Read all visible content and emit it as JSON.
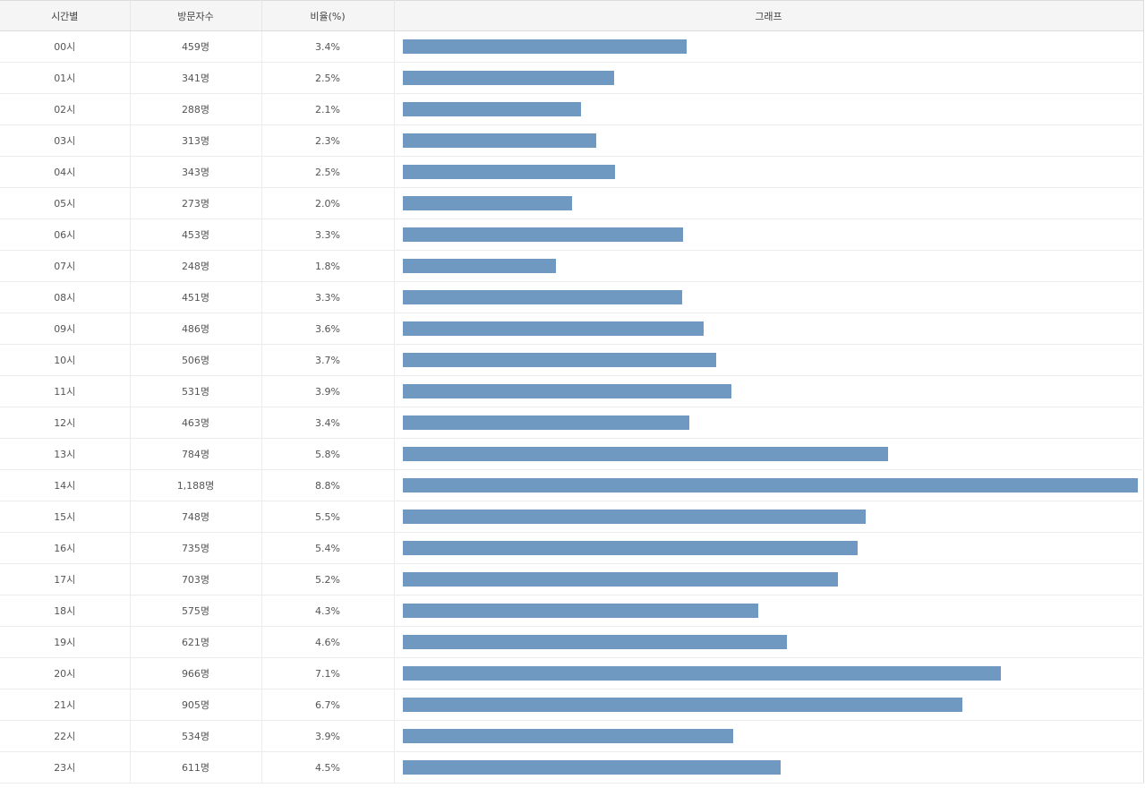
{
  "table": {
    "headers": [
      "시간별",
      "방문자수",
      "비율(%)",
      "그래프"
    ],
    "max_visitors": 1188,
    "bar_color": "#7099c1",
    "rows": [
      {
        "hour": "00시",
        "visitors": "459명",
        "ratio": "3.4%",
        "value": 459
      },
      {
        "hour": "01시",
        "visitors": "341명",
        "ratio": "2.5%",
        "value": 341
      },
      {
        "hour": "02시",
        "visitors": "288명",
        "ratio": "2.1%",
        "value": 288
      },
      {
        "hour": "03시",
        "visitors": "313명",
        "ratio": "2.3%",
        "value": 313
      },
      {
        "hour": "04시",
        "visitors": "343명",
        "ratio": "2.5%",
        "value": 343
      },
      {
        "hour": "05시",
        "visitors": "273명",
        "ratio": "2.0%",
        "value": 273
      },
      {
        "hour": "06시",
        "visitors": "453명",
        "ratio": "3.3%",
        "value": 453
      },
      {
        "hour": "07시",
        "visitors": "248명",
        "ratio": "1.8%",
        "value": 248
      },
      {
        "hour": "08시",
        "visitors": "451명",
        "ratio": "3.3%",
        "value": 451
      },
      {
        "hour": "09시",
        "visitors": "486명",
        "ratio": "3.6%",
        "value": 486
      },
      {
        "hour": "10시",
        "visitors": "506명",
        "ratio": "3.7%",
        "value": 506
      },
      {
        "hour": "11시",
        "visitors": "531명",
        "ratio": "3.9%",
        "value": 531
      },
      {
        "hour": "12시",
        "visitors": "463명",
        "ratio": "3.4%",
        "value": 463
      },
      {
        "hour": "13시",
        "visitors": "784명",
        "ratio": "5.8%",
        "value": 784
      },
      {
        "hour": "14시",
        "visitors": "1,188명",
        "ratio": "8.8%",
        "value": 1188
      },
      {
        "hour": "15시",
        "visitors": "748명",
        "ratio": "5.5%",
        "value": 748
      },
      {
        "hour": "16시",
        "visitors": "735명",
        "ratio": "5.4%",
        "value": 735
      },
      {
        "hour": "17시",
        "visitors": "703명",
        "ratio": "5.2%",
        "value": 703
      },
      {
        "hour": "18시",
        "visitors": "575명",
        "ratio": "4.3%",
        "value": 575
      },
      {
        "hour": "19시",
        "visitors": "621명",
        "ratio": "4.6%",
        "value": 621
      },
      {
        "hour": "20시",
        "visitors": "966명",
        "ratio": "7.1%",
        "value": 966
      },
      {
        "hour": "21시",
        "visitors": "905명",
        "ratio": "6.7%",
        "value": 905
      },
      {
        "hour": "22시",
        "visitors": "534명",
        "ratio": "3.9%",
        "value": 534
      },
      {
        "hour": "23시",
        "visitors": "611명",
        "ratio": "4.5%",
        "value": 611
      }
    ]
  }
}
